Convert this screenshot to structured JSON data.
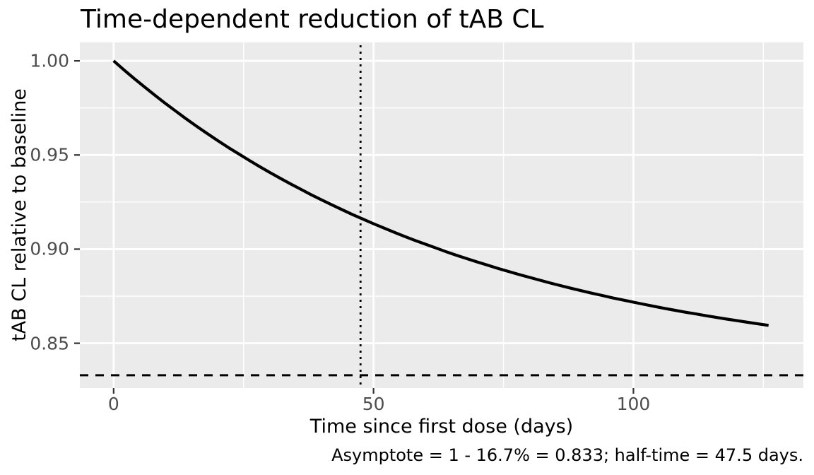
{
  "chart_data": {
    "type": "line",
    "title": "Time-dependent reduction of tAB CL",
    "xlabel": "Time since first dose (days)",
    "ylabel": "tAB CL relative to baseline",
    "caption": "Asymptote = 1 - 16.7% = 0.833; half-time = 47.5 days.",
    "legend": "none",
    "grid": "major+minor",
    "xlim": [
      -6.5,
      132.7
    ],
    "ylim": [
      0.8262,
      1.0098
    ],
    "x_major_ticks": [
      {
        "value": 0,
        "label": "0"
      },
      {
        "value": 50,
        "label": "50"
      },
      {
        "value": 100,
        "label": "100"
      }
    ],
    "y_major_ticks": [
      {
        "value": 1.0,
        "label": "1.00"
      },
      {
        "value": 0.95,
        "label": "0.95"
      },
      {
        "value": 0.9,
        "label": "0.90"
      },
      {
        "value": 0.85,
        "label": "0.85"
      }
    ],
    "x_minor_ticks": [
      25,
      75,
      125
    ],
    "y_minor_ticks": [
      0.975,
      0.925,
      0.875
    ],
    "series": [
      {
        "name": "tAB CL relative to baseline",
        "line_color": "#000000",
        "line_width": 4.2,
        "x": [
          0,
          2,
          4,
          6,
          8,
          10,
          12,
          14,
          16,
          18,
          20,
          22,
          24,
          26,
          28,
          30,
          32,
          34,
          36,
          38,
          40,
          42,
          44,
          46,
          48,
          50,
          52,
          54,
          56,
          58,
          60,
          62,
          64,
          66,
          68,
          70,
          72,
          74,
          76,
          78,
          80,
          82,
          84,
          86,
          88,
          90,
          92,
          94,
          96,
          98,
          100,
          102,
          104,
          106,
          108,
          110,
          112,
          114,
          116,
          118,
          120,
          122,
          124,
          126
        ],
        "y": [
          1.0,
          0.9952,
          0.9905,
          0.986,
          0.9816,
          0.9773,
          0.9732,
          0.9691,
          0.9652,
          0.9614,
          0.9577,
          0.9541,
          0.9507,
          0.9473,
          0.944,
          0.9408,
          0.9377,
          0.9347,
          0.9318,
          0.9289,
          0.9262,
          0.9235,
          0.9209,
          0.9183,
          0.9159,
          0.9135,
          0.9112,
          0.9089,
          0.9067,
          0.9046,
          0.9026,
          0.9006,
          0.8986,
          0.8967,
          0.8949,
          0.8931,
          0.8914,
          0.8897,
          0.8881,
          0.8865,
          0.885,
          0.8835,
          0.882,
          0.8806,
          0.8792,
          0.8779,
          0.8766,
          0.8754,
          0.8741,
          0.873,
          0.8718,
          0.8707,
          0.8696,
          0.8685,
          0.8675,
          0.8665,
          0.8656,
          0.8646,
          0.8637,
          0.8628,
          0.862,
          0.8611,
          0.8603,
          0.8595
        ]
      }
    ],
    "reference_lines": {
      "hline": {
        "y": 0.833,
        "style": "dashed",
        "color": "#000000",
        "meaning": "asymptote"
      },
      "vline": {
        "x": 47.5,
        "style": "dotted",
        "color": "#000000",
        "meaning": "half-time"
      }
    },
    "annotations": {
      "asymptote": 0.833,
      "reduction_pct": "16.7%",
      "half_time_days": 47.5
    },
    "colors": {
      "background": "#FFFFFF",
      "panel_bg": "#EBEBEB",
      "grid": "#FFFFFF",
      "tick_mark": "#333333",
      "tick_label": "#4D4D4D",
      "text": "#000000"
    }
  }
}
